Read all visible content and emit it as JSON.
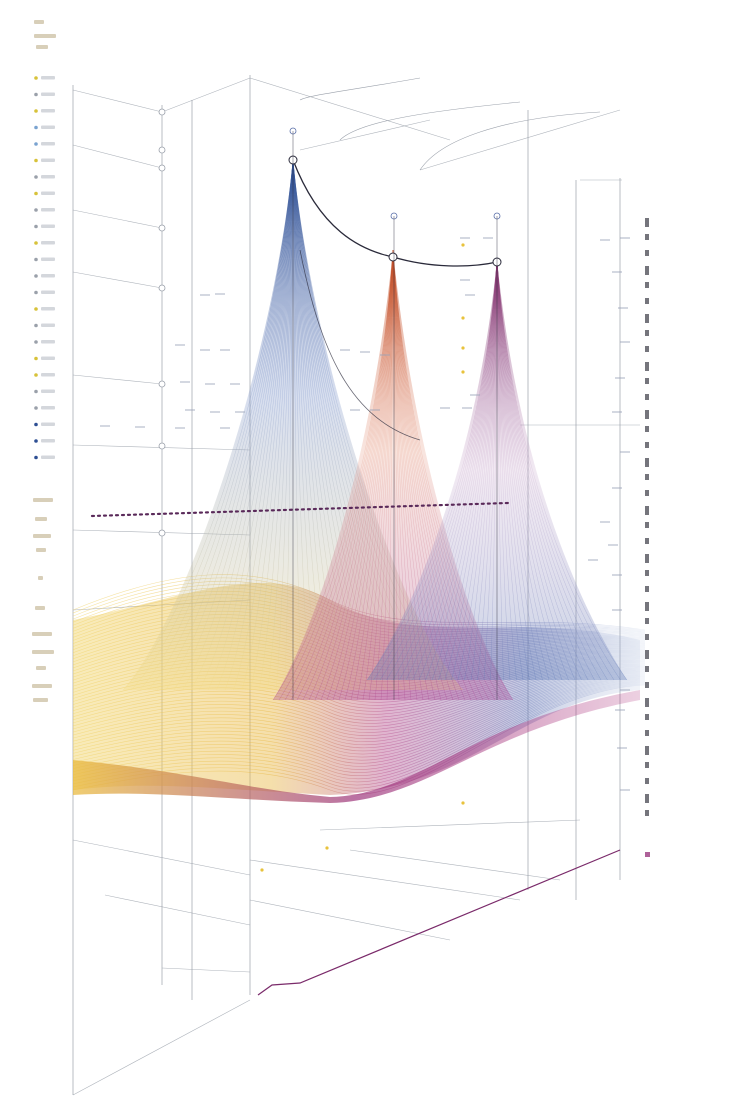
{
  "figure": {
    "kind": "abstract-3d-peak-illustration",
    "legible_text": "none",
    "peaks": [
      {
        "name": "blue-peak",
        "color": "#3a5fa0"
      },
      {
        "name": "orange-peak",
        "color": "#c4582e"
      },
      {
        "name": "purple-peak",
        "color": "#8a3d78"
      }
    ],
    "colors": {
      "blue": "#4a6fb0",
      "orange": "#d0703c",
      "magenta": "#9a3a80",
      "yellow": "#e8c23c",
      "axis": "#9aa0aa",
      "curve": "#2a2a3a",
      "dots": "#5a2a5a",
      "background": "#ffffff"
    }
  }
}
